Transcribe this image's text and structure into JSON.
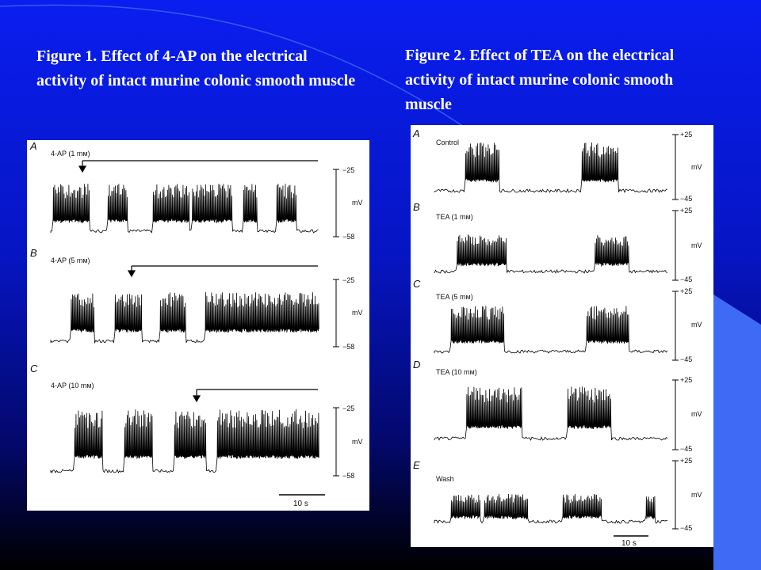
{
  "slide": {
    "background": "#0a1ef0",
    "accent": "#3f6af5",
    "caption_color": "#ffffff"
  },
  "figure1": {
    "caption": "Figure 1. Effect of 4-AP on the electrical activity of intact murine colonic smooth muscle",
    "panels": [
      {
        "letter": "A",
        "label": "4-AP (1 mм)",
        "scale_top": "−25",
        "scale_unit": "mV",
        "scale_bottom": "−58"
      },
      {
        "letter": "B",
        "label": "4-AP (5 mм)",
        "scale_top": "−25",
        "scale_unit": "mV",
        "scale_bottom": "−58"
      },
      {
        "letter": "C",
        "label": "4-AP (10 mм)",
        "scale_top": "−25",
        "scale_unit": "mV",
        "scale_bottom": "−58"
      }
    ],
    "time_bar": "10 s"
  },
  "figure2": {
    "caption": "Figure 2. Effect of TEA on the electrical activity of intact murine colonic smooth muscle",
    "panels": [
      {
        "letter": "A",
        "label": "Control",
        "scale_top": "+25",
        "scale_unit": "mV",
        "scale_bottom": "−45"
      },
      {
        "letter": "B",
        "label": "TEA (1 mм)",
        "scale_top": "+25",
        "scale_unit": "mV",
        "scale_bottom": "−45"
      },
      {
        "letter": "C",
        "label": "TEA (5 mм)",
        "scale_top": "+25",
        "scale_unit": "mV",
        "scale_bottom": "−45"
      },
      {
        "letter": "D",
        "label": "TEA (10 mм)",
        "scale_top": "+25",
        "scale_unit": "mV",
        "scale_bottom": "−45"
      },
      {
        "letter": "E",
        "label": "Wash",
        "scale_top": "+25",
        "scale_unit": "mV",
        "scale_bottom": "−45"
      }
    ],
    "time_bar": "10 s"
  }
}
